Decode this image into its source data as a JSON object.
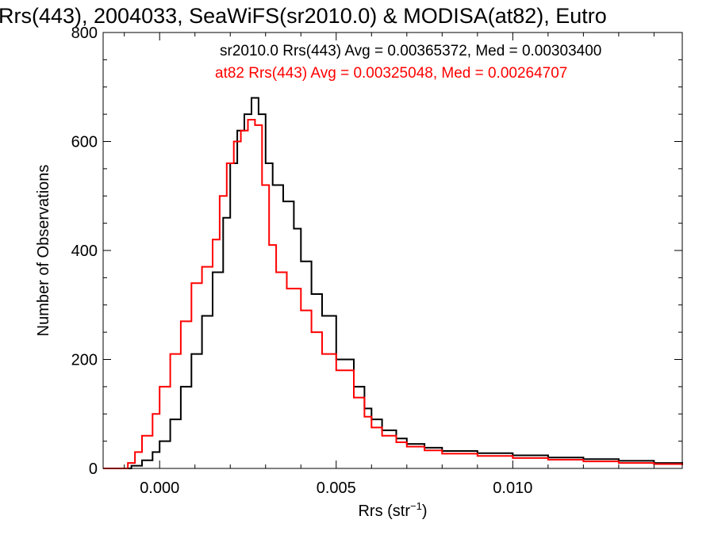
{
  "chart_data": {
    "type": "line",
    "title": "Rrs(443), 2004033, SeaWiFS(sr2010.0) & MODISA(at82), Eutro",
    "xlabel": "Rrs (str",
    "xlabel_sup": "−1",
    "xlabel_end": ")",
    "ylabel": "Number of Observations",
    "xlim": [
      -0.0016,
      0.0148
    ],
    "ylim": [
      0,
      800
    ],
    "x_ticks": [
      0.0,
      0.005,
      0.01
    ],
    "x_tick_labels": [
      "0.000",
      "0.005",
      "0.010"
    ],
    "y_ticks": [
      0,
      200,
      400,
      600,
      800
    ],
    "y_tick_labels": [
      "0",
      "200",
      "400",
      "600",
      "800"
    ],
    "grid": false,
    "series": [
      {
        "name": "sr2010.0",
        "color": "#000000",
        "legend_text": "sr2010.0 Rrs(443) Avg = 0.00365372, Med = 0.00303400",
        "x": [
          -0.0016,
          -0.0011,
          -0.0008,
          -0.0005,
          -0.0002,
          0.0,
          0.0003,
          0.0006,
          0.0009,
          0.0012,
          0.0015,
          0.0018,
          0.002,
          0.0022,
          0.0024,
          0.0026,
          0.0028,
          0.003,
          0.0032,
          0.0035,
          0.0038,
          0.004,
          0.0043,
          0.0046,
          0.005,
          0.0055,
          0.0058,
          0.006,
          0.0063,
          0.0067,
          0.007,
          0.0075,
          0.008,
          0.009,
          0.01,
          0.011,
          0.012,
          0.013,
          0.014,
          0.0148
        ],
        "y": [
          0,
          0,
          5,
          15,
          30,
          50,
          90,
          150,
          210,
          280,
          360,
          460,
          560,
          620,
          650,
          680,
          650,
          560,
          520,
          490,
          440,
          380,
          320,
          280,
          200,
          150,
          110,
          90,
          70,
          55,
          45,
          38,
          32,
          28,
          24,
          20,
          17,
          14,
          10,
          8
        ]
      },
      {
        "name": "at82",
        "color": "#ff0000",
        "legend_text": "at82 Rrs(443) Avg = 0.00325048, Med = 0.00264707",
        "x": [
          -0.0016,
          -0.0012,
          -0.0009,
          -0.0007,
          -0.0005,
          -0.0002,
          0.0,
          0.0003,
          0.0006,
          0.0009,
          0.0012,
          0.0015,
          0.0017,
          0.0019,
          0.0021,
          0.0023,
          0.0025,
          0.0027,
          0.0029,
          0.0031,
          0.0033,
          0.0036,
          0.004,
          0.0043,
          0.0046,
          0.005,
          0.0055,
          0.0058,
          0.006,
          0.0063,
          0.0067,
          0.007,
          0.0075,
          0.008,
          0.009,
          0.01,
          0.011,
          0.012,
          0.013,
          0.014,
          0.0148
        ],
        "y": [
          0,
          0,
          10,
          30,
          60,
          100,
          150,
          210,
          270,
          340,
          370,
          420,
          500,
          560,
          600,
          620,
          640,
          630,
          520,
          410,
          360,
          330,
          290,
          250,
          210,
          180,
          130,
          95,
          75,
          60,
          48,
          40,
          33,
          27,
          23,
          19,
          16,
          13,
          10,
          8,
          6
        ]
      }
    ],
    "legend_placement": "top-right"
  }
}
